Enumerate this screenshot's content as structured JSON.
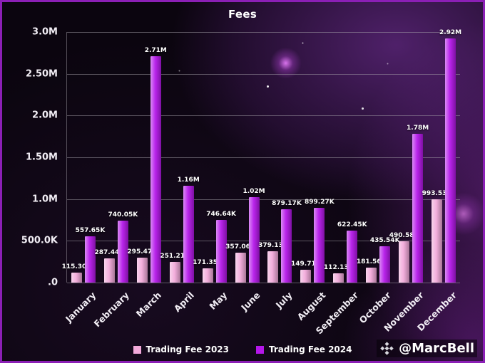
{
  "watermark": {
    "handle": "@MarcBell",
    "logo_icon": "binance-diamond-logo"
  },
  "chart_data": {
    "type": "bar",
    "title": "Fees",
    "categories": [
      "January",
      "February",
      "March",
      "April",
      "May",
      "June",
      "July",
      "August",
      "September",
      "October",
      "November",
      "December"
    ],
    "series": [
      {
        "name": "Trading Fee 2023",
        "color": "#f2a9da",
        "values": [
          115300,
          287440,
          295470,
          251210,
          171350,
          357060,
          379130,
          149710,
          112130,
          181560,
          490580,
          993530
        ],
        "labels": [
          "115.30K",
          "287.44K",
          "295.47K",
          "251.21K",
          "171.35K",
          "357.06K",
          "379.13K",
          "149.71K",
          "112.13K",
          "181.56K",
          "490.58K",
          "993.53K"
        ]
      },
      {
        "name": "Trading Fee 2024",
        "color": "#b517ea",
        "values": [
          557650,
          740050,
          2710000,
          1160000,
          746640,
          1020000,
          879170,
          899270,
          622450,
          435540,
          1780000,
          2920000
        ],
        "labels": [
          "557.65K",
          "740.05K",
          "2.71M",
          "1.16M",
          "746.64K",
          "1.02M",
          "879.17K",
          "899.27K",
          "622.45K",
          "435.54K",
          "1.78M",
          "2.92M"
        ]
      }
    ],
    "ylim": [
      0,
      3000000
    ],
    "yticks": [
      {
        "value": 0,
        "label": ".0"
      },
      {
        "value": 500000,
        "label": "500.0K"
      },
      {
        "value": 1000000,
        "label": "1.0M"
      },
      {
        "value": 1500000,
        "label": "1.50M"
      },
      {
        "value": 2000000,
        "label": "2.0M"
      },
      {
        "value": 2500000,
        "label": "2.50M"
      },
      {
        "value": 3000000,
        "label": "3.0M"
      }
    ],
    "grid": true,
    "legend_position": "bottom",
    "background_color": "#0b050f",
    "text_color": "#ffffff",
    "frame_border_color": "#8b1fb5"
  }
}
